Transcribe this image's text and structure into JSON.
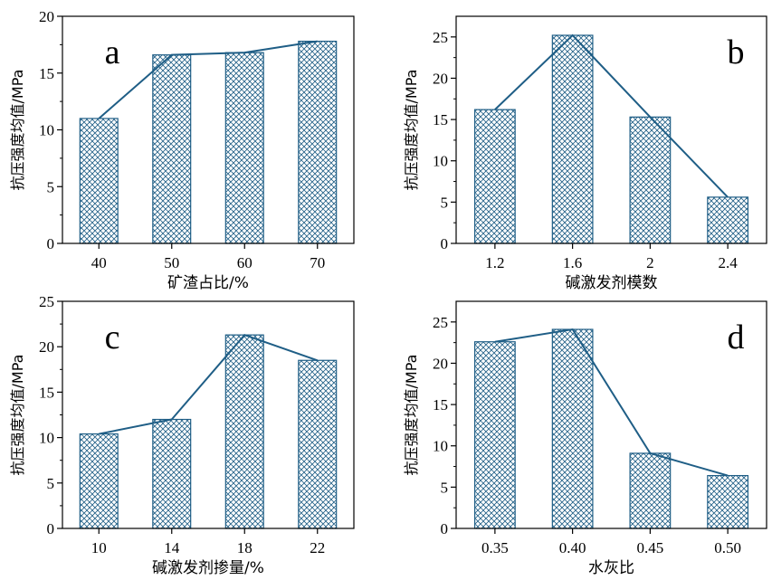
{
  "figure": {
    "colors": {
      "bar_stroke": "#1f5e86",
      "line": "#1f5e86",
      "axis": "#000000"
    }
  },
  "chart_data": [
    {
      "type": "bar",
      "panel_label": "a",
      "categories": [
        "40",
        "50",
        "60",
        "70"
      ],
      "values": [
        11.0,
        16.6,
        16.8,
        17.8
      ],
      "line_values": [
        11.0,
        16.6,
        16.8,
        17.8
      ],
      "title": "",
      "xlabel": "矿渣占比/%",
      "ylabel": "抗压强度均值/MPa",
      "ylim": [
        0,
        20
      ],
      "yticks": [
        0,
        5,
        10,
        15,
        20
      ],
      "ytick_labels": [
        "0",
        "5",
        "10",
        "15",
        "20"
      ],
      "label_position": "top-left",
      "grid": false
    },
    {
      "type": "bar",
      "panel_label": "b",
      "categories": [
        "1.2",
        "1.6",
        "2",
        "2.4"
      ],
      "values": [
        16.2,
        25.2,
        15.3,
        5.6
      ],
      "line_values": [
        16.2,
        25.2,
        15.3,
        5.6
      ],
      "title": "",
      "xlabel": "碱激发剂模数",
      "ylabel": "抗压强度均值/MPa",
      "ylim": [
        0,
        27.5
      ],
      "yticks": [
        0,
        5,
        10,
        15,
        20,
        25
      ],
      "ytick_labels": [
        "0",
        "5",
        "10",
        "15",
        "20",
        "25"
      ],
      "label_position": "top-right",
      "grid": false
    },
    {
      "type": "bar",
      "panel_label": "c",
      "categories": [
        "10",
        "14",
        "18",
        "22"
      ],
      "values": [
        10.4,
        12.0,
        21.3,
        18.5
      ],
      "line_values": [
        10.4,
        12.0,
        21.3,
        18.5
      ],
      "title": "",
      "xlabel": "碱激发剂掺量/%",
      "ylabel": "抗压强度均值/MPa",
      "ylim": [
        0,
        25
      ],
      "yticks": [
        0,
        5,
        10,
        15,
        20,
        25
      ],
      "ytick_labels": [
        "0",
        "5",
        "10",
        "15",
        "20",
        "25"
      ],
      "label_position": "top-left",
      "grid": false
    },
    {
      "type": "bar",
      "panel_label": "d",
      "categories": [
        "0.35",
        "0.40",
        "0.45",
        "0.50"
      ],
      "values": [
        22.6,
        24.1,
        9.1,
        6.4
      ],
      "line_values": [
        22.6,
        24.1,
        9.1,
        6.4
      ],
      "title": "",
      "xlabel": "水灰比",
      "ylabel": "抗压强度均值/MPa",
      "ylim": [
        0,
        27.5
      ],
      "yticks": [
        0,
        5,
        10,
        15,
        20,
        25
      ],
      "ytick_labels": [
        "0",
        "5",
        "10",
        "15",
        "20",
        "25"
      ],
      "label_position": "top-right",
      "grid": false
    }
  ]
}
